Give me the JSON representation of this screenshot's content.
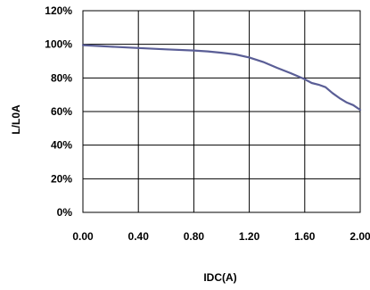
{
  "chart_data": {
    "type": "line",
    "xlabel": "IDC(A)",
    "ylabel": "L/L0A",
    "xlim": [
      0,
      2.0
    ],
    "ylim": [
      0,
      120
    ],
    "x_ticks": [
      "0.00",
      "0.40",
      "0.80",
      "1.20",
      "1.60",
      "2.00"
    ],
    "y_ticks": [
      "0%",
      "20%",
      "40%",
      "60%",
      "80%",
      "100%",
      "120%"
    ],
    "grid": true,
    "line_color": "#5a5e96",
    "series": [
      {
        "x": [
          0.0,
          0.2,
          0.4,
          0.6,
          0.8,
          0.9,
          1.0,
          1.1,
          1.2,
          1.3,
          1.4,
          1.5,
          1.6,
          1.65,
          1.7,
          1.75,
          1.8,
          1.85,
          1.9,
          1.95,
          2.0
        ],
        "y": [
          99.5,
          98.6,
          97.8,
          97.0,
          96.3,
          95.8,
          95.0,
          94.0,
          92.2,
          89.5,
          86.0,
          82.8,
          79.2,
          77.0,
          76.0,
          74.5,
          71.0,
          68.0,
          65.5,
          63.8,
          61.0
        ]
      }
    ]
  }
}
